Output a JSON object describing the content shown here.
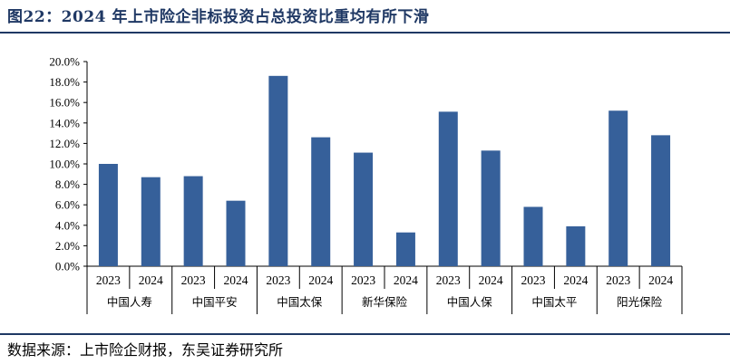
{
  "title": "图22：2024 年上市险企非标投资占总投资比重均有所下滑",
  "source": "数据来源：上市险企财报，东吴证券研究所",
  "colors": {
    "bar": "#36609a",
    "heading": "#1f3864",
    "axis": "#000000"
  },
  "chart_data": {
    "type": "bar",
    "groups": [
      {
        "name": "中国人寿",
        "categories": [
          "2023",
          "2024"
        ],
        "values": [
          10.0,
          8.7
        ]
      },
      {
        "name": "中国平安",
        "categories": [
          "2023",
          "2024"
        ],
        "values": [
          8.8,
          6.4
        ]
      },
      {
        "name": "中国太保",
        "categories": [
          "2023",
          "2024"
        ],
        "values": [
          18.6,
          12.6
        ]
      },
      {
        "name": "新华保险",
        "categories": [
          "2023",
          "2024"
        ],
        "values": [
          11.1,
          3.3
        ]
      },
      {
        "name": "中国人保",
        "categories": [
          "2023",
          "2024"
        ],
        "values": [
          15.1,
          11.3
        ]
      },
      {
        "name": "中国太平",
        "categories": [
          "2023",
          "2024"
        ],
        "values": [
          5.8,
          3.9
        ]
      },
      {
        "name": "阳光保险",
        "categories": [
          "2023",
          "2024"
        ],
        "values": [
          15.2,
          12.8
        ]
      }
    ],
    "ylim": [
      0,
      20
    ],
    "yticks": [
      "0.0%",
      "2.0%",
      "4.0%",
      "6.0%",
      "8.0%",
      "10.0%",
      "12.0%",
      "14.0%",
      "16.0%",
      "18.0%",
      "20.0%"
    ],
    "grid": false,
    "legend": "none"
  }
}
